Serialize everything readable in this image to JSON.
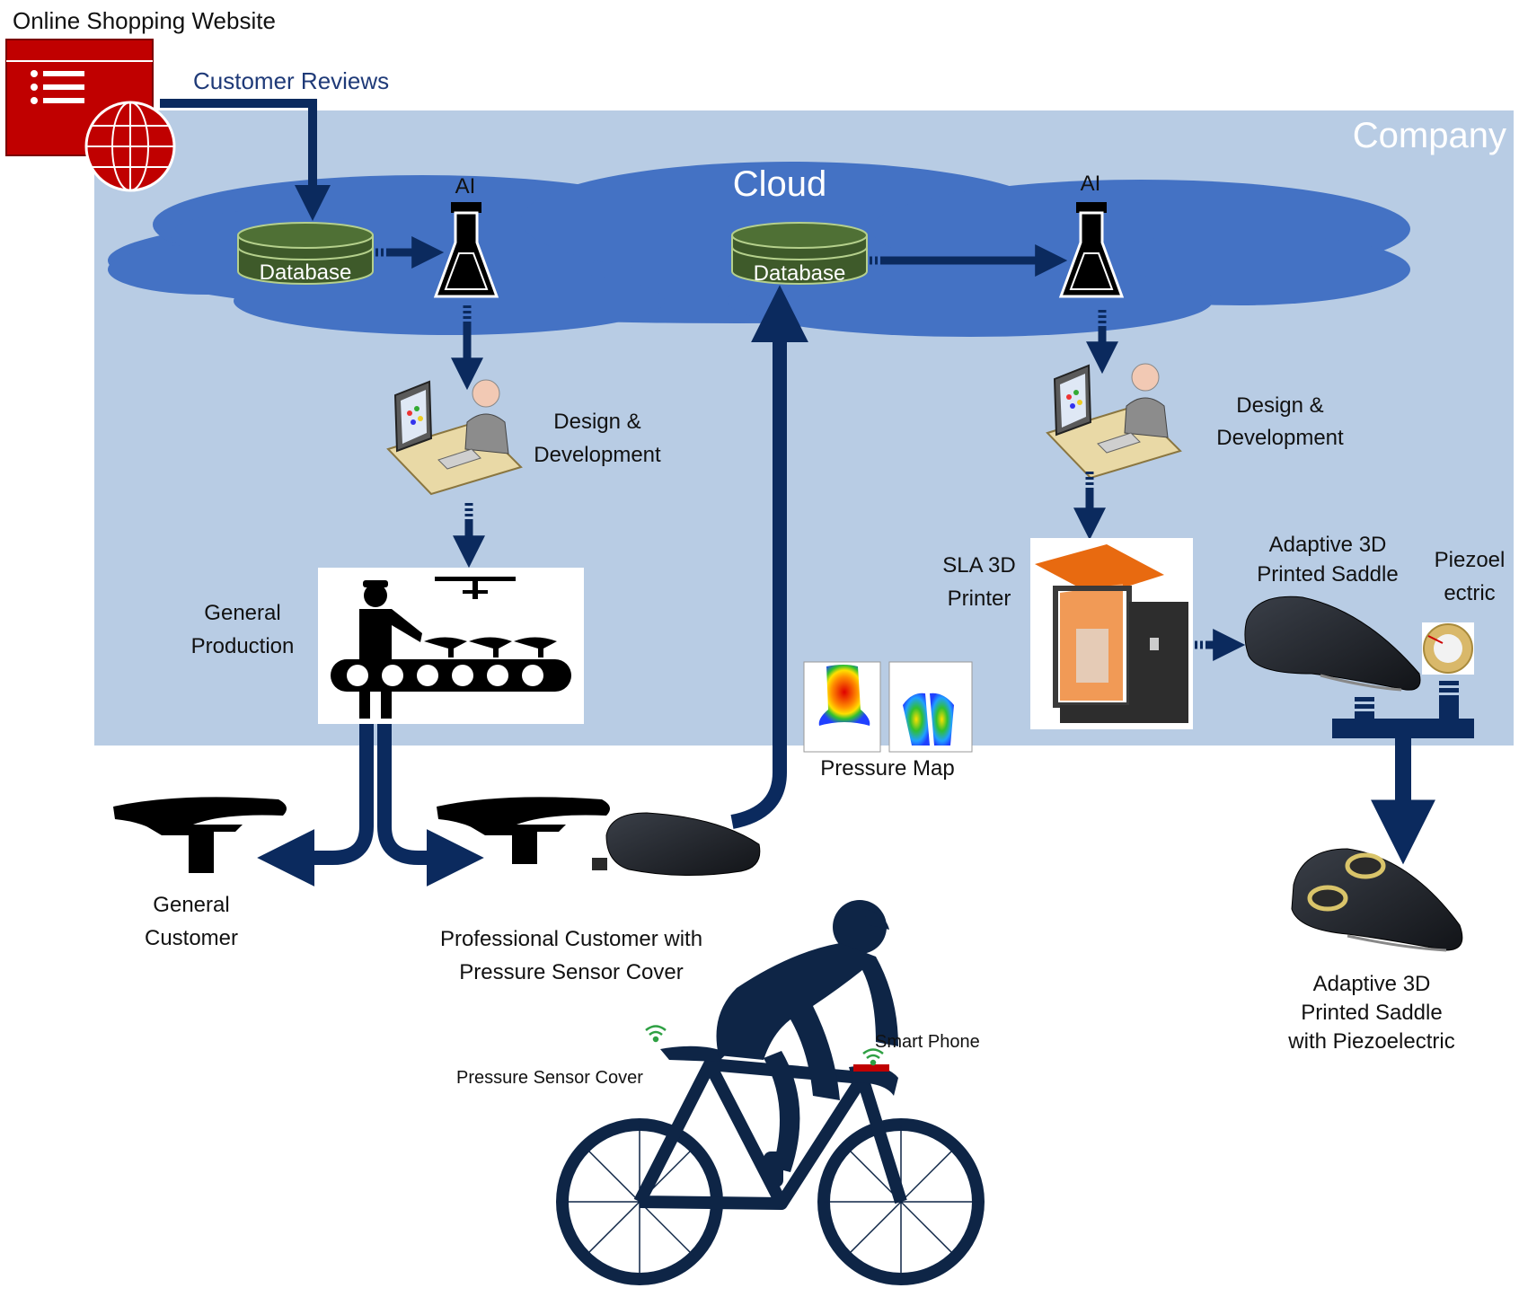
{
  "website": {
    "title": "Online Shopping Website",
    "flow_label": "Customer Reviews"
  },
  "company": {
    "label": "Company"
  },
  "cloud": {
    "label": "Cloud"
  },
  "left_flow": {
    "database_label": "Database",
    "ai_label": "AI",
    "design_line1": "Design &",
    "design_line2": "Development",
    "production_line1": "General",
    "production_line2": "Production"
  },
  "right_flow": {
    "database_label": "Database",
    "ai_label": "AI",
    "design_line1": "Design &",
    "design_line2": "Development",
    "printer_line1": "SLA 3D",
    "printer_line2": "Printer",
    "saddle_line1": "Adaptive 3D",
    "saddle_line2": "Printed Saddle",
    "piezo_line1": "Piezoel",
    "piezo_line2": "ectric",
    "final_line1": "Adaptive 3D",
    "final_line2": "Printed Saddle",
    "final_line3": "with Piezoelectric"
  },
  "customers": {
    "general_line1": "General",
    "general_line2": "Customer",
    "pro_line1": "Professional Customer with",
    "pro_line2": "Pressure Sensor Cover"
  },
  "pressure_map": {
    "label": "Pressure Map"
  },
  "cyclist": {
    "sensor_label": "Pressure Sensor Cover",
    "phone_label": "Smart Phone"
  },
  "colors": {
    "company_bg": "#b8cce4",
    "cloud": "#4472c4",
    "arrow": "#0b2a5e",
    "website_red": "#c00000",
    "database_green": "#3e5a2a",
    "silhouette": "#0e2546"
  }
}
